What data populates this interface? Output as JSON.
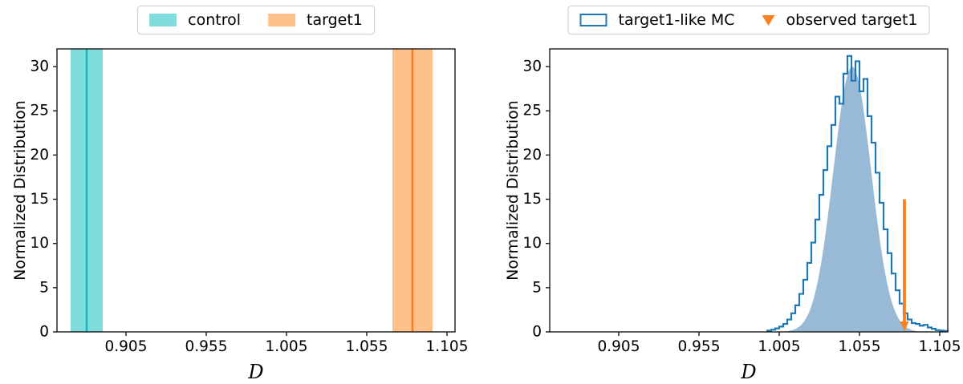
{
  "figure": {
    "background": "#ffffff",
    "text_color": "#000000",
    "spine_color": "#1a1a1a"
  },
  "chart_data": [
    {
      "type": "line",
      "subtype": "vertical-lines-with-uncertainty-bands",
      "title": "",
      "xlabel": "D",
      "ylabel": "Normalized Distribution",
      "xlim": [
        0.862,
        1.11
      ],
      "ylim": [
        0,
        32
      ],
      "xticks": [
        {
          "value": 0.905,
          "label": "0.905"
        },
        {
          "value": 0.955,
          "label": "0.955"
        },
        {
          "value": 1.005,
          "label": "1.005"
        },
        {
          "value": 1.055,
          "label": "1.055"
        },
        {
          "value": 1.105,
          "label": "1.105"
        }
      ],
      "yticks": [
        {
          "value": 0,
          "label": "0"
        },
        {
          "value": 5,
          "label": "5"
        },
        {
          "value": 10,
          "label": "10"
        },
        {
          "value": 15,
          "label": "15"
        },
        {
          "value": 20,
          "label": "20"
        },
        {
          "value": 25,
          "label": "25"
        },
        {
          "value": 30,
          "label": "30"
        }
      ],
      "legend": [
        {
          "label": "control",
          "marker": "filled-swatch",
          "color": "#7FDEDD"
        },
        {
          "label": "target1",
          "marker": "filled-swatch",
          "color": "#FFC18A"
        }
      ],
      "series": [
        {
          "name": "control",
          "center": 0.8805,
          "band": [
            0.8705,
            0.8905
          ],
          "band_color": "#7FDEDD",
          "line_color": "#17B8BA",
          "span_full_height": true
        },
        {
          "name": "target1",
          "center": 1.0835,
          "band": [
            1.071,
            1.096
          ],
          "band_color": "#FFC18A",
          "line_color": "#F98020",
          "span_full_height": true
        }
      ]
    },
    {
      "type": "bar",
      "subtype": "normalized-histogram-with-observed-marker",
      "title": "",
      "xlabel": "D",
      "ylabel": "Normalized Distribution",
      "xlim": [
        0.862,
        1.11
      ],
      "ylim": [
        0,
        32
      ],
      "xticks": [
        {
          "value": 0.905,
          "label": "0.905"
        },
        {
          "value": 0.955,
          "label": "0.955"
        },
        {
          "value": 1.005,
          "label": "1.005"
        },
        {
          "value": 1.055,
          "label": "1.055"
        },
        {
          "value": 1.105,
          "label": "1.105"
        }
      ],
      "yticks": [
        {
          "value": 0,
          "label": "0"
        },
        {
          "value": 5,
          "label": "5"
        },
        {
          "value": 10,
          "label": "10"
        },
        {
          "value": 15,
          "label": "15"
        },
        {
          "value": 20,
          "label": "20"
        },
        {
          "value": 25,
          "label": "25"
        },
        {
          "value": 30,
          "label": "30"
        }
      ],
      "legend": [
        {
          "label": "target1-like MC",
          "marker": "open-rect",
          "color": "#1F77B4"
        },
        {
          "label": "observed target1",
          "marker": "triangle-down",
          "color": "#F98020"
        }
      ],
      "filled_component": {
        "name": "target1-like MC (filled)",
        "shape": "gaussian",
        "mean": 1.0505,
        "sigma": 0.0118,
        "peak": 30.0,
        "range": [
          0.9935,
          1.1085
        ],
        "fill_color": "rgba(70,130,180,0.55)"
      },
      "step_component": {
        "name": "target1-like MC (step outline)",
        "bin_start": 0.9975,
        "bin_width": 0.0025,
        "heights": [
          0.15,
          0.25,
          0.4,
          0.6,
          0.9,
          1.4,
          2.1,
          3.0,
          4.3,
          5.9,
          7.8,
          10.1,
          12.7,
          15.5,
          18.3,
          21.0,
          23.4,
          26.6,
          25.8,
          29.2,
          31.2,
          28.4,
          30.6,
          27.2,
          28.6,
          24.4,
          21.4,
          18.0,
          14.6,
          11.6,
          8.9,
          6.6,
          4.7,
          3.2,
          2.1,
          1.4,
          1.0,
          0.9,
          0.7,
          0.8,
          0.5,
          0.35,
          0.2,
          0.15,
          0.1
        ],
        "line_color": "#1F77B4"
      },
      "observed_marker": {
        "name": "observed target1",
        "x": 1.083,
        "y_top": 15,
        "y_bottom": 0,
        "color": "#F98020"
      }
    }
  ]
}
